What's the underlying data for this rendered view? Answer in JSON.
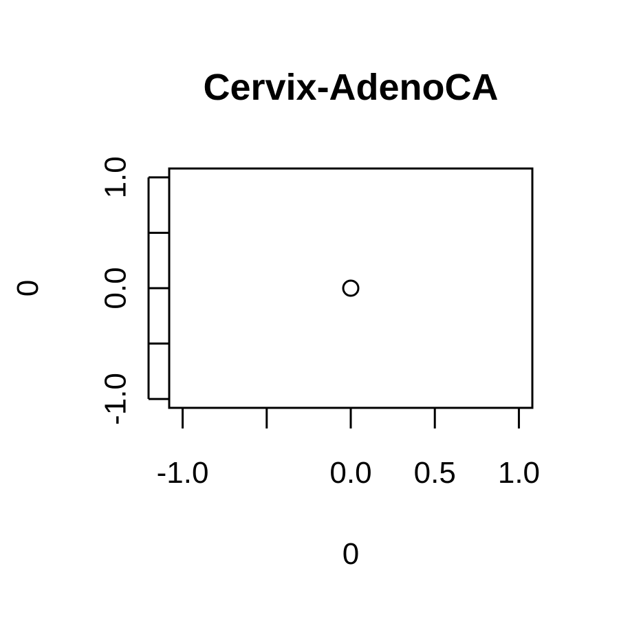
{
  "chart_data": {
    "type": "scatter",
    "title": "Cervix-AdenoCA",
    "xlabel": "0",
    "ylabel": "0",
    "xlim": [
      -1.08,
      1.08
    ],
    "ylim": [
      -1.08,
      1.08
    ],
    "x_ticks": [
      -1.0,
      -0.5,
      0.0,
      0.5,
      1.0
    ],
    "x_tick_labels": [
      "-1.0",
      "",
      "0.0",
      "0.5",
      "1.0"
    ],
    "y_ticks": [
      -1.0,
      -0.5,
      0.0,
      0.5,
      1.0
    ],
    "y_tick_labels": [
      "-1.0",
      "",
      "0.0",
      "",
      "1.0"
    ],
    "points": [
      {
        "x": 0.0,
        "y": 0.0
      }
    ],
    "marker": "open-circle",
    "grid": false,
    "colors": {
      "marker": "#000000",
      "axis": "#000000",
      "background": "#ffffff"
    }
  }
}
